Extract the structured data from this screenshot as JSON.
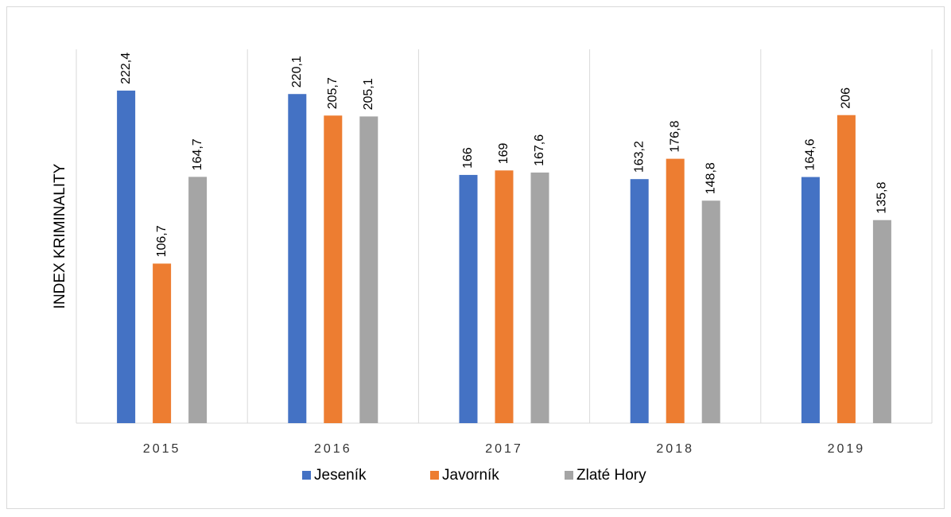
{
  "chart_data": {
    "type": "bar",
    "y_label": "INDEX KRIMINALITY",
    "categories": [
      "2015",
      "2016",
      "2017",
      "2018",
      "2019"
    ],
    "ylim": [
      0,
      250
    ],
    "series": [
      {
        "name": "Jeseník",
        "color": "#4472c4",
        "values": [
          222.4,
          220.1,
          166,
          163.2,
          164.6
        ],
        "value_labels": [
          "222,4",
          "220,1",
          "166",
          "163,2",
          "164,6"
        ]
      },
      {
        "name": "Javorník",
        "color": "#ed7d31",
        "values": [
          106.7,
          205.7,
          169,
          176.8,
          206
        ],
        "value_labels": [
          "106,7",
          "205,7",
          "169",
          "176,8",
          "206"
        ]
      },
      {
        "name": "Zlaté Hory",
        "color": "#a5a5a5",
        "values": [
          164.7,
          205.1,
          167.6,
          148.8,
          135.8
        ],
        "value_labels": [
          "164,7",
          "205,1",
          "167,6",
          "148,8",
          "135,8"
        ]
      }
    ],
    "legend": "bottom"
  }
}
